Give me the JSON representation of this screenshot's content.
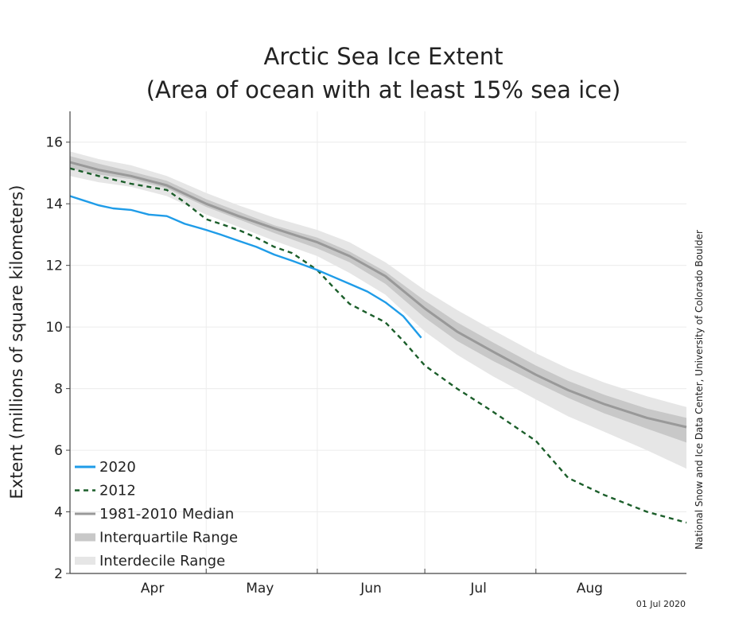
{
  "chart_data": {
    "type": "area",
    "title": "Arctic Sea Ice Extent",
    "subtitle": "(Area of ocean with at least 15% sea ice)",
    "ylabel": "Extent (millions of square kilometers)",
    "xlabel": "",
    "ylim": [
      2,
      17
    ],
    "yticks": [
      2,
      4,
      6,
      8,
      10,
      12,
      14,
      16
    ],
    "xlim": [
      "2020-03-24",
      "2020-09-12"
    ],
    "x_ticks": [
      {
        "label": "Apr",
        "date": "2020-04-16"
      },
      {
        "label": "May",
        "date": "2020-05-16"
      },
      {
        "label": "Jun",
        "date": "2020-06-16"
      },
      {
        "label": "Jul",
        "date": "2020-07-16"
      },
      {
        "label": "Aug",
        "date": "2020-08-16"
      }
    ],
    "x_dividers": [
      "2020-05-01",
      "2020-06-01",
      "2020-07-01",
      "2020-08-01"
    ],
    "grid": true,
    "legend": "bottom-left",
    "credit": "National Snow and Ice Data Center, University of Colorado Boulder",
    "date_label": "01 Jul 2020",
    "bands": {
      "dates": [
        "2020-03-24",
        "2020-04-01",
        "2020-04-10",
        "2020-04-20",
        "2020-05-01",
        "2020-05-10",
        "2020-05-20",
        "2020-06-01",
        "2020-06-10",
        "2020-06-20",
        "2020-07-01",
        "2020-07-10",
        "2020-07-20",
        "2020-08-01",
        "2020-08-10",
        "2020-08-20",
        "2020-09-01",
        "2020-09-12"
      ],
      "interdecile_upper": [
        15.7,
        15.45,
        15.25,
        14.9,
        14.35,
        13.95,
        13.55,
        13.15,
        12.75,
        12.1,
        11.2,
        10.55,
        9.9,
        9.15,
        8.65,
        8.2,
        7.75,
        7.4
      ],
      "interdecile_lower": [
        14.9,
        14.7,
        14.55,
        14.25,
        13.65,
        13.25,
        12.8,
        12.3,
        11.75,
        11.05,
        9.85,
        9.1,
        8.4,
        7.65,
        7.1,
        6.6,
        6.0,
        5.4
      ],
      "interquartile_upper": [
        15.55,
        15.3,
        15.05,
        14.75,
        14.15,
        13.75,
        13.3,
        12.9,
        12.45,
        11.8,
        10.85,
        10.15,
        9.5,
        8.75,
        8.25,
        7.8,
        7.35,
        7.05
      ],
      "interquartile_lower": [
        15.15,
        14.95,
        14.8,
        14.5,
        13.9,
        13.5,
        13.05,
        12.55,
        12.1,
        11.4,
        10.3,
        9.55,
        8.9,
        8.2,
        7.7,
        7.2,
        6.7,
        6.25
      ]
    },
    "series": [
      {
        "name": "2020",
        "color": "#1f9ce8",
        "style": "solid",
        "x": [
          "2020-03-24",
          "2020-03-28",
          "2020-04-01",
          "2020-04-05",
          "2020-04-10",
          "2020-04-15",
          "2020-04-20",
          "2020-04-25",
          "2020-05-01",
          "2020-05-05",
          "2020-05-10",
          "2020-05-15",
          "2020-05-20",
          "2020-05-25",
          "2020-06-01",
          "2020-06-05",
          "2020-06-10",
          "2020-06-15",
          "2020-06-20",
          "2020-06-25",
          "2020-06-30"
        ],
        "y": [
          14.25,
          14.1,
          13.95,
          13.85,
          13.8,
          13.65,
          13.6,
          13.35,
          13.15,
          13.0,
          12.8,
          12.6,
          12.35,
          12.15,
          11.85,
          11.65,
          11.4,
          11.15,
          10.8,
          10.35,
          9.65
        ]
      },
      {
        "name": "2012",
        "color": "#1b5e2a",
        "style": "dashed",
        "x": [
          "2020-03-24",
          "2020-04-01",
          "2020-04-10",
          "2020-04-20",
          "2020-04-25",
          "2020-05-01",
          "2020-05-05",
          "2020-05-10",
          "2020-05-15",
          "2020-05-20",
          "2020-05-25",
          "2020-06-01",
          "2020-06-05",
          "2020-06-10",
          "2020-06-15",
          "2020-06-20",
          "2020-06-25",
          "2020-07-01",
          "2020-07-10",
          "2020-07-20",
          "2020-08-01",
          "2020-08-10",
          "2020-08-20",
          "2020-09-01",
          "2020-09-12"
        ],
        "y": [
          15.15,
          14.9,
          14.65,
          14.45,
          14.05,
          13.5,
          13.35,
          13.15,
          12.9,
          12.6,
          12.4,
          11.85,
          11.35,
          10.75,
          10.45,
          10.15,
          9.55,
          8.75,
          8.0,
          7.25,
          6.3,
          5.1,
          4.55,
          4.0,
          3.65
        ]
      },
      {
        "name": "1981-2010 Median",
        "color": "#999999",
        "style": "solid",
        "x": [
          "2020-03-24",
          "2020-04-01",
          "2020-04-10",
          "2020-04-20",
          "2020-05-01",
          "2020-05-10",
          "2020-05-20",
          "2020-06-01",
          "2020-06-10",
          "2020-06-20",
          "2020-07-01",
          "2020-07-10",
          "2020-07-20",
          "2020-08-01",
          "2020-08-10",
          "2020-08-20",
          "2020-09-01",
          "2020-09-12"
        ],
        "y": [
          15.35,
          15.1,
          14.9,
          14.6,
          14.0,
          13.6,
          13.2,
          12.75,
          12.3,
          11.65,
          10.6,
          9.85,
          9.2,
          8.45,
          7.95,
          7.5,
          7.05,
          6.75
        ]
      }
    ],
    "legend_entries": [
      {
        "label": "2020",
        "color": "#1f9ce8",
        "style": "solid"
      },
      {
        "label": "2012",
        "color": "#1b5e2a",
        "style": "dashed"
      },
      {
        "label": "1981-2010 Median",
        "color": "#999999",
        "style": "solid"
      },
      {
        "label": "Interquartile Range",
        "color": "#c8c8c8",
        "style": "band"
      },
      {
        "label": "Interdecile Range",
        "color": "#e6e6e6",
        "style": "band"
      }
    ],
    "colors": {
      "interdecile": "#e6e6e6",
      "interquartile": "#c8c8c8",
      "grid": "#ececec",
      "axis": "#444444"
    }
  }
}
